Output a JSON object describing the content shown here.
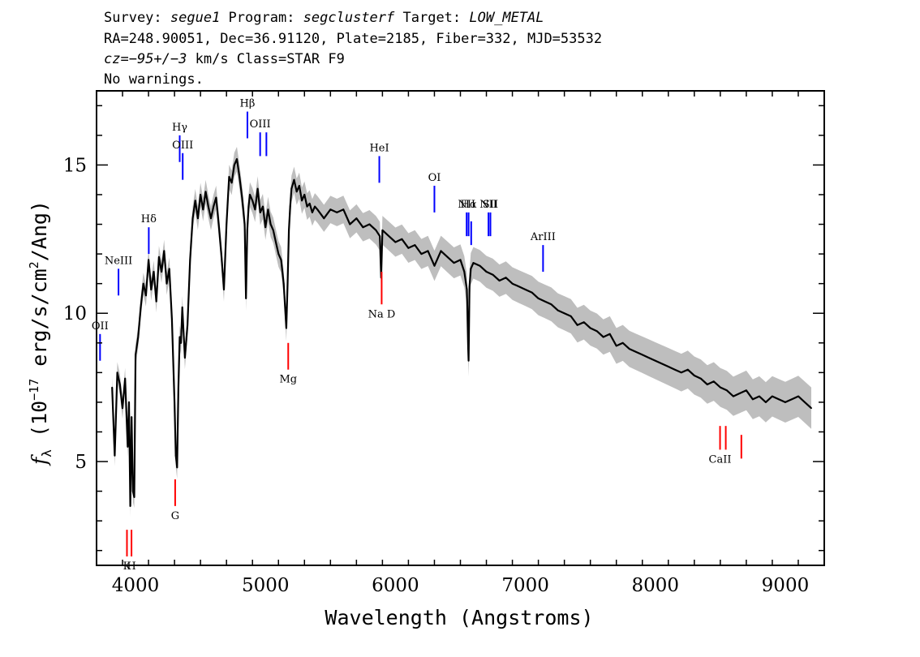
{
  "header": {
    "survey_prefix": "Survey: ",
    "survey": "segue1",
    "program_prefix": " Program: ",
    "program": "segclusterf",
    "target_prefix": " Target: ",
    "target": "LOW_METAL",
    "line2": "RA=248.90051, Dec=36.91120, Plate=2185, Fiber=332, MJD=53532",
    "cz_prefix": "cz=",
    "cz_value": "−95+/−3",
    "cz_suffix": " km/s Class=STAR F9",
    "line4": "No warnings."
  },
  "chart_data": {
    "type": "line",
    "xlabel": "Wavelength (Angstroms)",
    "ylabel_parts": {
      "f": "f",
      "sub": "λ",
      "pre": " (10",
      "exp": "−17",
      "mid": " erg/s/cm",
      "exp2": "2",
      "post": "/Ang)"
    },
    "xlim": [
      3700,
      9300
    ],
    "ylim": [
      1.5,
      17.5
    ],
    "xticks": [
      4000,
      5000,
      6000,
      7000,
      8000,
      9000
    ],
    "xticklabels": [
      "4000",
      "5000",
      "6000",
      "7000",
      "8000",
      "9000"
    ],
    "yticks": [
      5,
      10,
      15
    ],
    "yticklabels": [
      "5",
      "10",
      "15"
    ],
    "colors": {
      "flux": "#000000",
      "error": "#bebebe",
      "emission": "#0000ff",
      "absorption": "#ff0000"
    },
    "series": [
      {
        "x": [
          3820,
          3840,
          3860,
          3880,
          3900,
          3920,
          3940,
          3950,
          3960,
          3970,
          3980,
          3990,
          4000,
          4020,
          4040,
          4060,
          4080,
          4100,
          4120,
          4140,
          4160,
          4180,
          4200,
          4220,
          4240,
          4260,
          4280,
          4300,
          4310,
          4320,
          4330,
          4340,
          4350,
          4360,
          4380,
          4400,
          4420,
          4440,
          4460,
          4480,
          4500,
          4520,
          4540,
          4560,
          4580,
          4600,
          4620,
          4640,
          4660,
          4680,
          4700,
          4720,
          4740,
          4760,
          4780,
          4800,
          4820,
          4840,
          4850,
          4860,
          4870,
          4880,
          4900,
          4920,
          4940,
          4960,
          4980,
          5000,
          5020,
          5040,
          5060,
          5080,
          5100,
          5120,
          5140,
          5160,
          5170,
          5180,
          5190,
          5200,
          5220,
          5240,
          5260,
          5280,
          5300,
          5320,
          5340,
          5360,
          5380,
          5400,
          5450,
          5500,
          5550,
          5600,
          5650,
          5700,
          5750,
          5800,
          5850,
          5880,
          5890,
          5900,
          5950,
          6000,
          6050,
          6100,
          6150,
          6200,
          6250,
          6300,
          6350,
          6400,
          6450,
          6500,
          6530,
          6550,
          6560,
          6563,
          6570,
          6580,
          6600,
          6650,
          6700,
          6750,
          6800,
          6850,
          6900,
          6950,
          7000,
          7050,
          7100,
          7150,
          7200,
          7250,
          7300,
          7350,
          7400,
          7450,
          7500,
          7550,
          7600,
          7650,
          7700,
          7750,
          7800,
          7850,
          7900,
          7950,
          8000,
          8050,
          8100,
          8150,
          8200,
          8250,
          8300,
          8350,
          8400,
          8450,
          8500,
          8550,
          8600,
          8650,
          8700,
          8750,
          8800,
          8850,
          8900,
          8950,
          9000,
          9050,
          9100,
          9150,
          9200
        ],
        "y": [
          7.5,
          5.2,
          8.0,
          7.6,
          6.8,
          7.8,
          5.5,
          7.0,
          3.5,
          6.5,
          4.0,
          3.8,
          8.6,
          9.2,
          10.2,
          11.0,
          10.6,
          11.8,
          10.8,
          11.4,
          10.4,
          11.9,
          11.4,
          12.1,
          11.0,
          11.5,
          9.8,
          7.0,
          5.2,
          4.8,
          7.5,
          9.2,
          9.0,
          10.2,
          8.5,
          9.6,
          11.8,
          13.2,
          13.8,
          13.2,
          14.0,
          13.5,
          14.1,
          13.6,
          13.2,
          13.6,
          13.9,
          13.0,
          12.0,
          10.8,
          13.0,
          14.6,
          14.4,
          15.0,
          15.2,
          14.6,
          13.9,
          13.0,
          10.5,
          12.8,
          13.6,
          14.0,
          13.8,
          13.5,
          14.2,
          13.4,
          13.6,
          12.9,
          13.5,
          13.0,
          12.8,
          12.4,
          12.0,
          11.8,
          11.0,
          9.5,
          11.0,
          12.8,
          13.6,
          14.2,
          14.5,
          14.1,
          14.3,
          13.8,
          14.0,
          13.6,
          13.7,
          13.4,
          13.6,
          13.5,
          13.2,
          13.5,
          13.4,
          13.5,
          13.0,
          13.2,
          12.9,
          13.0,
          12.8,
          12.6,
          11.2,
          12.8,
          12.6,
          12.4,
          12.5,
          12.2,
          12.3,
          12.0,
          12.1,
          11.6,
          12.1,
          11.9,
          11.7,
          11.8,
          11.4,
          10.8,
          8.8,
          8.4,
          10.9,
          11.5,
          11.7,
          11.6,
          11.4,
          11.3,
          11.1,
          11.2,
          11.0,
          10.9,
          10.8,
          10.7,
          10.5,
          10.4,
          10.3,
          10.1,
          10.0,
          9.9,
          9.6,
          9.7,
          9.5,
          9.4,
          9.2,
          9.3,
          8.9,
          9.0,
          8.8,
          8.7,
          8.6,
          8.5,
          8.4,
          8.3,
          8.2,
          8.1,
          8.0,
          8.1,
          7.9,
          7.8,
          7.6,
          7.7,
          7.5,
          7.4,
          7.2,
          7.3,
          7.4,
          7.1,
          7.2,
          7.0,
          7.2,
          7.1,
          7.0,
          7.1,
          7.2,
          7.0,
          6.8
        ]
      }
    ],
    "emission_lines": [
      {
        "name": "OII",
        "wl": 3727,
        "y0": 8.4,
        "y1": 9.3
      },
      {
        "name": "NeIII",
        "wl": 3869,
        "y0": 10.6,
        "y1": 11.5
      },
      {
        "name": "Hδ",
        "wl": 4102,
        "y0": 12.0,
        "y1": 12.9
      },
      {
        "name": "Hγ",
        "wl": 4340,
        "y0": 15.1,
        "y1": 16.0
      },
      {
        "name": "OIII",
        "wl": 4363,
        "y0": 14.5,
        "y1": 15.4
      },
      {
        "name": "Hβ",
        "wl": 4861,
        "y0": 15.9,
        "y1": 16.8
      },
      {
        "name": "OIII",
        "wl": 4959,
        "y0": 15.3,
        "y1": 16.1
      },
      {
        "name": "",
        "wl": 5007,
        "y0": 15.3,
        "y1": 16.1
      },
      {
        "name": "HeI",
        "wl": 5876,
        "y0": 14.4,
        "y1": 15.3
      },
      {
        "name": "OI",
        "wl": 6300,
        "y0": 13.4,
        "y1": 14.3
      },
      {
        "name": "NII",
        "wl": 6548,
        "y0": 12.6,
        "y1": 13.4
      },
      {
        "name": "Hα",
        "wl": 6563,
        "y0": 12.6,
        "y1": 13.4
      },
      {
        "name": "",
        "wl": 6583,
        "y0": 12.3,
        "y1": 13.1
      },
      {
        "name": "NII",
        "wl": 6716,
        "y0": 12.6,
        "y1": 13.4
      },
      {
        "name": "SII",
        "wl": 6731,
        "y0": 12.6,
        "y1": 13.4
      },
      {
        "name": "ArIII",
        "wl": 7136,
        "y0": 11.4,
        "y1": 12.3
      }
    ],
    "absorption_lines": [
      {
        "name": "K",
        "wl": 3934,
        "y0": 1.8,
        "y1": 2.7
      },
      {
        "name": "H",
        "wl": 3969,
        "y0": 1.8,
        "y1": 2.7
      },
      {
        "name": "G",
        "wl": 4305,
        "y0": 3.5,
        "y1": 4.4
      },
      {
        "name": "Mg",
        "wl": 5175,
        "y0": 8.1,
        "y1": 9.0
      },
      {
        "name": "Na D",
        "wl": 5894,
        "y0": 10.3,
        "y1": 11.4
      },
      {
        "name": "CaII",
        "wl": 8498,
        "y0": 5.4,
        "y1": 6.2
      },
      {
        "name": "",
        "wl": 8542,
        "y0": 5.4,
        "y1": 6.2
      },
      {
        "name": "",
        "wl": 8662,
        "y0": 5.1,
        "y1": 5.9
      }
    ]
  }
}
